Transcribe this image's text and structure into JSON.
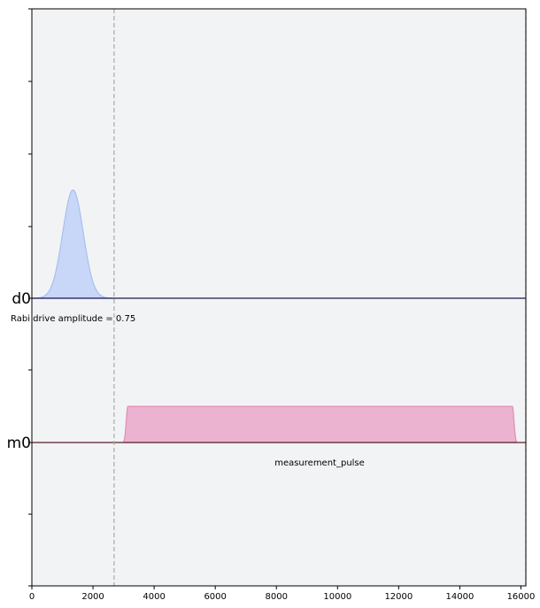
{
  "chart_data": {
    "type": "area",
    "xlim": [
      0,
      16160
    ],
    "x_ticks": [
      "0",
      "2000",
      "4000",
      "6000",
      "8000",
      "10000",
      "12000",
      "14000",
      "16000"
    ],
    "x_tick_values": [
      0,
      2000,
      4000,
      6000,
      8000,
      10000,
      12000,
      14000,
      16000
    ],
    "grid": false,
    "background": "#f2f3f5",
    "barrier_x": [
      2690,
      16160
    ],
    "channels": [
      {
        "name": "d0",
        "baseline_color": "#1a1a4d",
        "fill_color": "#c8d6f7",
        "line_color": "#a9bff2",
        "pulse": {
          "shape": "gaussian",
          "center": 1345,
          "sigma": 336,
          "amplitude": 0.75,
          "start": 0,
          "end": 2690
        },
        "annotation": "Rabi drive amplitude = 0.75"
      },
      {
        "name": "m0",
        "baseline_color": "#5a1f2a",
        "fill_color": "#ecb3d1",
        "line_color": "#dc8fb4",
        "pulse": {
          "shape": "gaussian_square",
          "start": 3010,
          "end": 15850,
          "rise": 130,
          "amplitude": 0.25
        },
        "annotation": "measurement_pulse"
      }
    ]
  }
}
